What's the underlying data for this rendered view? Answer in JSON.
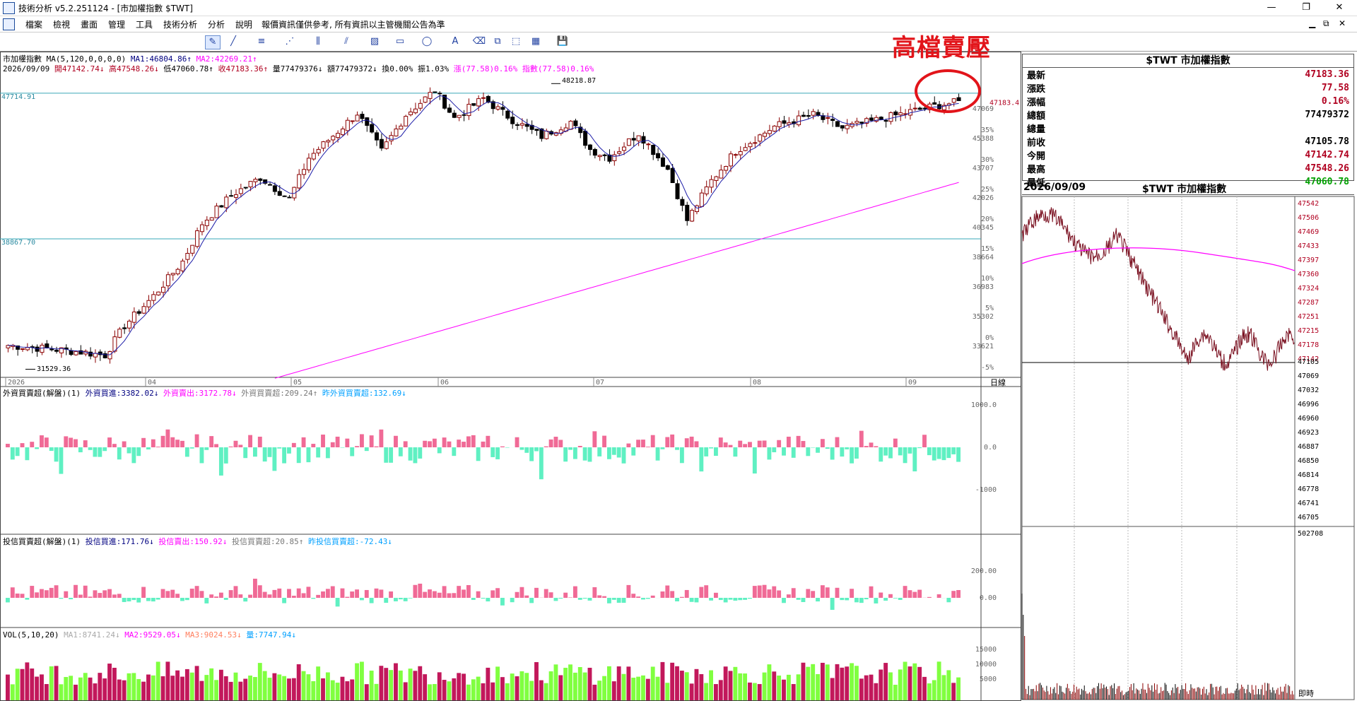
{
  "window": {
    "title": "技術分析 v5.2.251124 - [市加權指數 $TWT]",
    "controls": [
      "—",
      "❐",
      "✕"
    ],
    "inner_controls": [
      "▁",
      "⧉",
      "✕"
    ]
  },
  "menu": [
    "檔案",
    "檢視",
    "畫面",
    "管理",
    "工具",
    "技術分析",
    "分析",
    "說明",
    "報價資訊僅供參考, 所有資訊以主管機關公告為準"
  ],
  "annotation": {
    "text": "高檔賣壓",
    "color": "#e2141a"
  },
  "price_panel": {
    "legend1": [
      {
        "text": "市加權指數 MA(5,120,0,0,0,0)",
        "color": "#000000"
      },
      {
        "text": "MA1:46804.86↑",
        "color": "#000080"
      },
      {
        "text": "MA2:42269.21↑",
        "color": "#ff00ff"
      }
    ],
    "legend2": [
      {
        "text": "2026/09/09",
        "color": "#000000"
      },
      {
        "text": "開47142.74↓",
        "color": "#b00020"
      },
      {
        "text": "高47548.26↓",
        "color": "#b00020"
      },
      {
        "text": "低47060.78↑",
        "color": "#000000"
      },
      {
        "text": "收47183.36↑",
        "color": "#b00020"
      },
      {
        "text": "量77479376↓",
        "color": "#000000"
      },
      {
        "text": "額77479372↓",
        "color": "#000000"
      },
      {
        "text": "換0.00%",
        "color": "#000000"
      },
      {
        "text": "振1.03%",
        "color": "#000000"
      },
      {
        "text": "漲(77.58)0.16%",
        "color": "#ff00ff"
      },
      {
        "text": "指數(77.58)0.16%",
        "color": "#ff00ff"
      }
    ],
    "hline_labels": [
      "47714.91",
      "38867.70"
    ],
    "high_label": "48218.87",
    "low_label": "31529.36",
    "last_price_label": "47183.4",
    "month_labels": [
      "2026",
      "04",
      "05",
      "06",
      "07",
      "08",
      "09"
    ],
    "right_axis": [
      {
        "pct": "",
        "val": "47069"
      },
      {
        "pct": "35%",
        "val": "45388"
      },
      {
        "pct": "30%",
        "val": "43707"
      },
      {
        "pct": "25%",
        "val": "42026"
      },
      {
        "pct": "20%",
        "val": "40345"
      },
      {
        "pct": "15%",
        "val": "38664"
      },
      {
        "pct": "10%",
        "val": "36983"
      },
      {
        "pct": "5%",
        "val": "35302"
      },
      {
        "pct": "0%",
        "val": "33621"
      },
      {
        "pct": "-5%",
        "val": ""
      }
    ],
    "axis_unit": "日線"
  },
  "foreign_panel": {
    "legend": [
      {
        "text": "外資買賣超(解盤)(1)",
        "color": "#000000"
      },
      {
        "text": "外資買進:3382.02↓",
        "color": "#000080"
      },
      {
        "text": "外資賣出:3172.78↓",
        "color": "#ff00ff"
      },
      {
        "text": "外資買賣超:209.24↑",
        "color": "#777777"
      },
      {
        "text": "昨外資買賣超:132.69↓",
        "color": "#00a0ff"
      }
    ],
    "axis": [
      "1000.0",
      "0.0",
      "-1000"
    ]
  },
  "trust_panel": {
    "legend": [
      {
        "text": "投信買賣超(解盤)(1)",
        "color": "#000000"
      },
      {
        "text": "投信買進:171.76↓",
        "color": "#000080"
      },
      {
        "text": "投信賣出:150.92↓",
        "color": "#ff00ff"
      },
      {
        "text": "投信買賣超:20.85↑",
        "color": "#777777"
      },
      {
        "text": "昨投信買賣超:-72.43↓",
        "color": "#00a0ff"
      }
    ],
    "axis": [
      "200.00",
      "0.00"
    ]
  },
  "vol_panel": {
    "legend": [
      {
        "text": "VOL(5,10,20)",
        "color": "#000000"
      },
      {
        "text": "MA1:8741.24↓",
        "color": "#aaaaaa"
      },
      {
        "text": "MA2:9529.05↓",
        "color": "#ff00ff"
      },
      {
        "text": "MA3:9024.53↓",
        "color": "#ff8060"
      },
      {
        "text": "量:7747.94↓",
        "color": "#00a0ff"
      }
    ],
    "axis": [
      "15000",
      "10000",
      "5000"
    ]
  },
  "quote": {
    "header": "$TWT 市加權指數",
    "rows": [
      {
        "label": "最新",
        "value": "47183.36",
        "color": "#b00020"
      },
      {
        "label": "漲跌",
        "value": "77.58",
        "color": "#b00020"
      },
      {
        "label": "漲幅",
        "value": "0.16%",
        "color": "#b00020"
      },
      {
        "label": "總額",
        "value": "77479372",
        "color": "#000000"
      },
      {
        "label": "總量",
        "value": "",
        "color": "#000000"
      },
      {
        "label": "前收",
        "value": "47105.78",
        "color": "#000000"
      },
      {
        "label": "今開",
        "value": "47142.74",
        "color": "#b00020"
      },
      {
        "label": "最高",
        "value": "47548.26",
        "color": "#b00020"
      },
      {
        "label": "最低",
        "value": "47060.78",
        "color": "#00a000"
      }
    ]
  },
  "intraday": {
    "date": "2026/09/09",
    "header": "$TWT 市加權指數",
    "axis_red": [
      "47542",
      "47506",
      "47469",
      "47433",
      "47397",
      "47360",
      "47324",
      "47287",
      "47251",
      "47215",
      "47178",
      "47142"
    ],
    "axis_black": [
      "47105",
      "47069",
      "47032",
      "46996",
      "46960",
      "46923",
      "46887",
      "46850",
      "46814",
      "46778",
      "46741",
      "46705"
    ],
    "vol_top": "502708",
    "unit": "即時"
  },
  "chart_data": {
    "type": "candlestick",
    "title": "市加權指數",
    "series_names": [
      "MA1",
      "MA2"
    ],
    "last_close": 47183.36,
    "period_high": 48218.87,
    "period_low": 31529.36
  }
}
